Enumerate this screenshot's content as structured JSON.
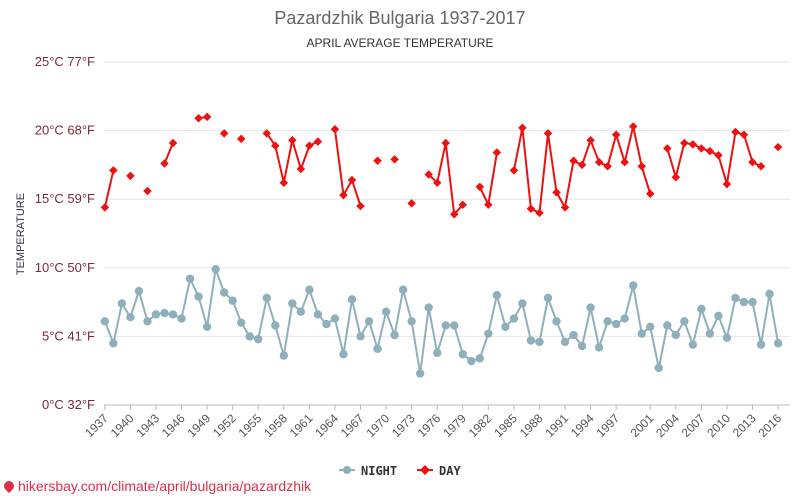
{
  "chart_data": {
    "type": "line",
    "title": "Pazardzhik Bulgaria 1937-2017",
    "subtitle": "APRIL AVERAGE TEMPERATURE",
    "ylabel": "TEMPERATURE",
    "ylim": [
      0,
      25
    ],
    "y_ticks": [
      {
        "value": 0,
        "label": "0°C 32°F"
      },
      {
        "value": 5,
        "label": "5°C 41°F"
      },
      {
        "value": 10,
        "label": "10°C 50°F"
      },
      {
        "value": 15,
        "label": "15°C 59°F"
      },
      {
        "value": 20,
        "label": "20°C 68°F"
      },
      {
        "value": 25,
        "label": "25°C 77°F"
      }
    ],
    "x_ticks": [
      "1937",
      "1940",
      "1943",
      "1946",
      "1949",
      "1952",
      "1955",
      "1958",
      "1961",
      "1964",
      "1967",
      "1970",
      "1973",
      "1976",
      "1979",
      "1982",
      "1985",
      "1988",
      "1991",
      "1994",
      "1997",
      "2001",
      "2004",
      "2007",
      "2010",
      "2013",
      "2016"
    ],
    "legend_position": "bottom",
    "grid": true,
    "series": [
      {
        "name": "NIGHT",
        "color": "#8fb0ba",
        "points": [
          [
            1937,
            6.1
          ],
          [
            1938,
            4.5
          ],
          [
            1939,
            7.4
          ],
          [
            1940,
            6.4
          ],
          [
            1941,
            8.3
          ],
          [
            1942,
            6.1
          ],
          [
            1943,
            6.6
          ],
          [
            1944,
            6.7
          ],
          [
            1945,
            6.6
          ],
          [
            1946,
            6.3
          ],
          [
            1947,
            9.2
          ],
          [
            1948,
            7.9
          ],
          [
            1949,
            5.7
          ],
          [
            1950,
            9.9
          ],
          [
            1951,
            8.2
          ],
          [
            1952,
            7.6
          ],
          [
            1953,
            6.0
          ],
          [
            1954,
            5.0
          ],
          [
            1955,
            4.8
          ],
          [
            1956,
            7.8
          ],
          [
            1957,
            5.8
          ],
          [
            1958,
            3.6
          ],
          [
            1959,
            7.4
          ],
          [
            1960,
            6.8
          ],
          [
            1961,
            8.4
          ],
          [
            1962,
            6.6
          ],
          [
            1963,
            5.9
          ],
          [
            1964,
            6.3
          ],
          [
            1965,
            3.7
          ],
          [
            1966,
            7.7
          ],
          [
            1967,
            5.0
          ],
          [
            1968,
            6.1
          ],
          [
            1969,
            4.1
          ],
          [
            1970,
            6.8
          ],
          [
            1971,
            5.1
          ],
          [
            1972,
            8.4
          ],
          [
            1973,
            6.1
          ],
          [
            1974,
            2.3
          ],
          [
            1975,
            7.1
          ],
          [
            1976,
            3.8
          ],
          [
            1977,
            5.8
          ],
          [
            1978,
            5.8
          ],
          [
            1979,
            3.7
          ],
          [
            1980,
            3.2
          ],
          [
            1981,
            3.4
          ],
          [
            1982,
            5.2
          ],
          [
            1983,
            8.0
          ],
          [
            1984,
            5.7
          ],
          [
            1985,
            6.3
          ],
          [
            1986,
            7.4
          ],
          [
            1987,
            4.7
          ],
          [
            1988,
            4.6
          ],
          [
            1989,
            7.8
          ],
          [
            1990,
            6.1
          ],
          [
            1991,
            4.6
          ],
          [
            1992,
            5.1
          ],
          [
            1993,
            4.3
          ],
          [
            1994,
            7.1
          ],
          [
            1995,
            4.2
          ],
          [
            1996,
            6.1
          ],
          [
            1997,
            5.9
          ],
          [
            1998,
            6.3
          ],
          [
            1999,
            8.7
          ],
          [
            2000,
            5.2
          ],
          [
            2001,
            5.7
          ],
          [
            2002,
            2.7
          ],
          [
            2003,
            5.8
          ],
          [
            2004,
            5.1
          ],
          [
            2005,
            6.1
          ],
          [
            2006,
            4.4
          ],
          [
            2007,
            7.0
          ],
          [
            2008,
            5.2
          ],
          [
            2009,
            6.5
          ],
          [
            2010,
            4.9
          ],
          [
            2011,
            7.8
          ],
          [
            2012,
            7.5
          ],
          [
            2013,
            7.5
          ],
          [
            2014,
            4.4
          ],
          [
            2015,
            8.1
          ],
          [
            2016,
            4.5
          ]
        ]
      },
      {
        "name": "DAY",
        "color": "#ee1111",
        "points": [
          [
            1937,
            14.4
          ],
          [
            1938,
            17.1
          ],
          [
            1939,
            null
          ],
          [
            1940,
            16.7
          ],
          [
            1941,
            null
          ],
          [
            1942,
            15.6
          ],
          [
            1943,
            null
          ],
          [
            1944,
            17.6
          ],
          [
            1945,
            19.1
          ],
          [
            1946,
            null
          ],
          [
            1947,
            null
          ],
          [
            1948,
            20.9
          ],
          [
            1949,
            21.0
          ],
          [
            1950,
            null
          ],
          [
            1951,
            19.8
          ],
          [
            1952,
            null
          ],
          [
            1953,
            19.4
          ],
          [
            1954,
            null
          ],
          [
            1955,
            null
          ],
          [
            1956,
            19.8
          ],
          [
            1957,
            18.9
          ],
          [
            1958,
            16.2
          ],
          [
            1959,
            19.3
          ],
          [
            1960,
            17.2
          ],
          [
            1961,
            18.9
          ],
          [
            1962,
            19.2
          ],
          [
            1963,
            null
          ],
          [
            1964,
            20.1
          ],
          [
            1965,
            15.3
          ],
          [
            1966,
            16.4
          ],
          [
            1967,
            14.5
          ],
          [
            1968,
            null
          ],
          [
            1969,
            17.8
          ],
          [
            1970,
            null
          ],
          [
            1971,
            17.9
          ],
          [
            1972,
            null
          ],
          [
            1973,
            14.7
          ],
          [
            1974,
            null
          ],
          [
            1975,
            16.8
          ],
          [
            1976,
            16.2
          ],
          [
            1977,
            19.1
          ],
          [
            1978,
            13.9
          ],
          [
            1979,
            14.6
          ],
          [
            1980,
            null
          ],
          [
            1981,
            15.9
          ],
          [
            1982,
            14.6
          ],
          [
            1983,
            18.4
          ],
          [
            1984,
            null
          ],
          [
            1985,
            17.1
          ],
          [
            1986,
            20.2
          ],
          [
            1987,
            14.3
          ],
          [
            1988,
            14.0
          ],
          [
            1989,
            19.8
          ],
          [
            1990,
            15.5
          ],
          [
            1991,
            14.4
          ],
          [
            1992,
            17.8
          ],
          [
            1993,
            17.5
          ],
          [
            1994,
            19.3
          ],
          [
            1995,
            17.7
          ],
          [
            1996,
            17.4
          ],
          [
            1997,
            19.7
          ],
          [
            1998,
            17.7
          ],
          [
            1999,
            20.3
          ],
          [
            2000,
            17.4
          ],
          [
            2001,
            15.4
          ],
          [
            2002,
            null
          ],
          [
            2003,
            18.7
          ],
          [
            2004,
            16.6
          ],
          [
            2005,
            19.1
          ],
          [
            2006,
            19.0
          ],
          [
            2007,
            18.7
          ],
          [
            2008,
            18.5
          ],
          [
            2009,
            18.2
          ],
          [
            2010,
            16.1
          ],
          [
            2011,
            19.9
          ],
          [
            2012,
            19.7
          ],
          [
            2013,
            17.7
          ],
          [
            2014,
            17.4
          ],
          [
            2015,
            null
          ],
          [
            2016,
            18.8
          ]
        ]
      }
    ]
  },
  "footer": {
    "url": "hikersbay.com/climate/april/bulgaria/pazardzhik"
  }
}
